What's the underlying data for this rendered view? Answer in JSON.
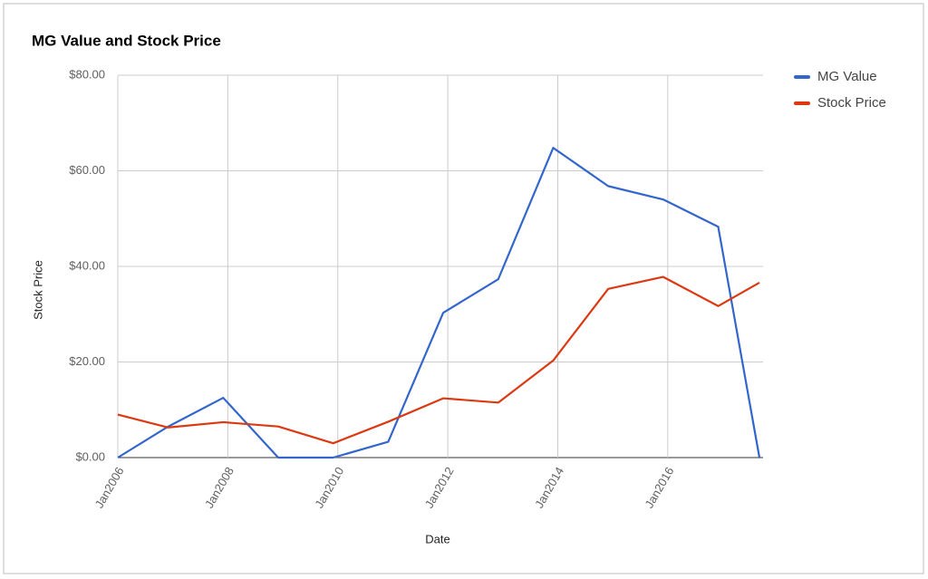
{
  "chart_data": {
    "type": "line",
    "title": "MG Value and Stock Price",
    "x_label": "Date",
    "y_label": "Stock Price",
    "x": [
      "2006-01",
      "2006-12",
      "2007-12",
      "2008-12",
      "2009-12",
      "2010-12",
      "2011-12",
      "2012-12",
      "2013-12",
      "2014-12",
      "2015-12",
      "2016-12",
      "2017-09"
    ],
    "series": [
      {
        "name": "MG Value",
        "color": "#3366cc",
        "values": [
          0,
          6.5,
          12.5,
          0,
          0,
          3.3,
          30.3,
          37.3,
          64.8,
          56.8,
          54.0,
          48.3,
          0
        ]
      },
      {
        "name": "Stock Price",
        "color": "#dc3912",
        "values": [
          9.0,
          6.3,
          7.4,
          6.5,
          3.0,
          7.5,
          12.4,
          11.5,
          20.3,
          35.3,
          37.8,
          31.7,
          36.6
        ]
      }
    ],
    "xlim": [
      "2006-01",
      "2017-09"
    ],
    "xticks": [
      {
        "value": "2006-01",
        "label": "Jan2006"
      },
      {
        "value": "2008-01",
        "label": "Jan2008"
      },
      {
        "value": "2010-01",
        "label": "Jan2010"
      },
      {
        "value": "2012-01",
        "label": "Jan2012"
      },
      {
        "value": "2014-01",
        "label": "Jan2014"
      },
      {
        "value": "2016-01",
        "label": "Jan2016"
      }
    ],
    "ylim": [
      0,
      80
    ],
    "yticks": [
      {
        "value": 0,
        "label": "$0.00"
      },
      {
        "value": 20,
        "label": "$20.00"
      },
      {
        "value": 40,
        "label": "$40.00"
      },
      {
        "value": 60,
        "label": "$60.00"
      },
      {
        "value": 80,
        "label": "$80.00"
      }
    ],
    "grid": true,
    "legend": "right"
  }
}
